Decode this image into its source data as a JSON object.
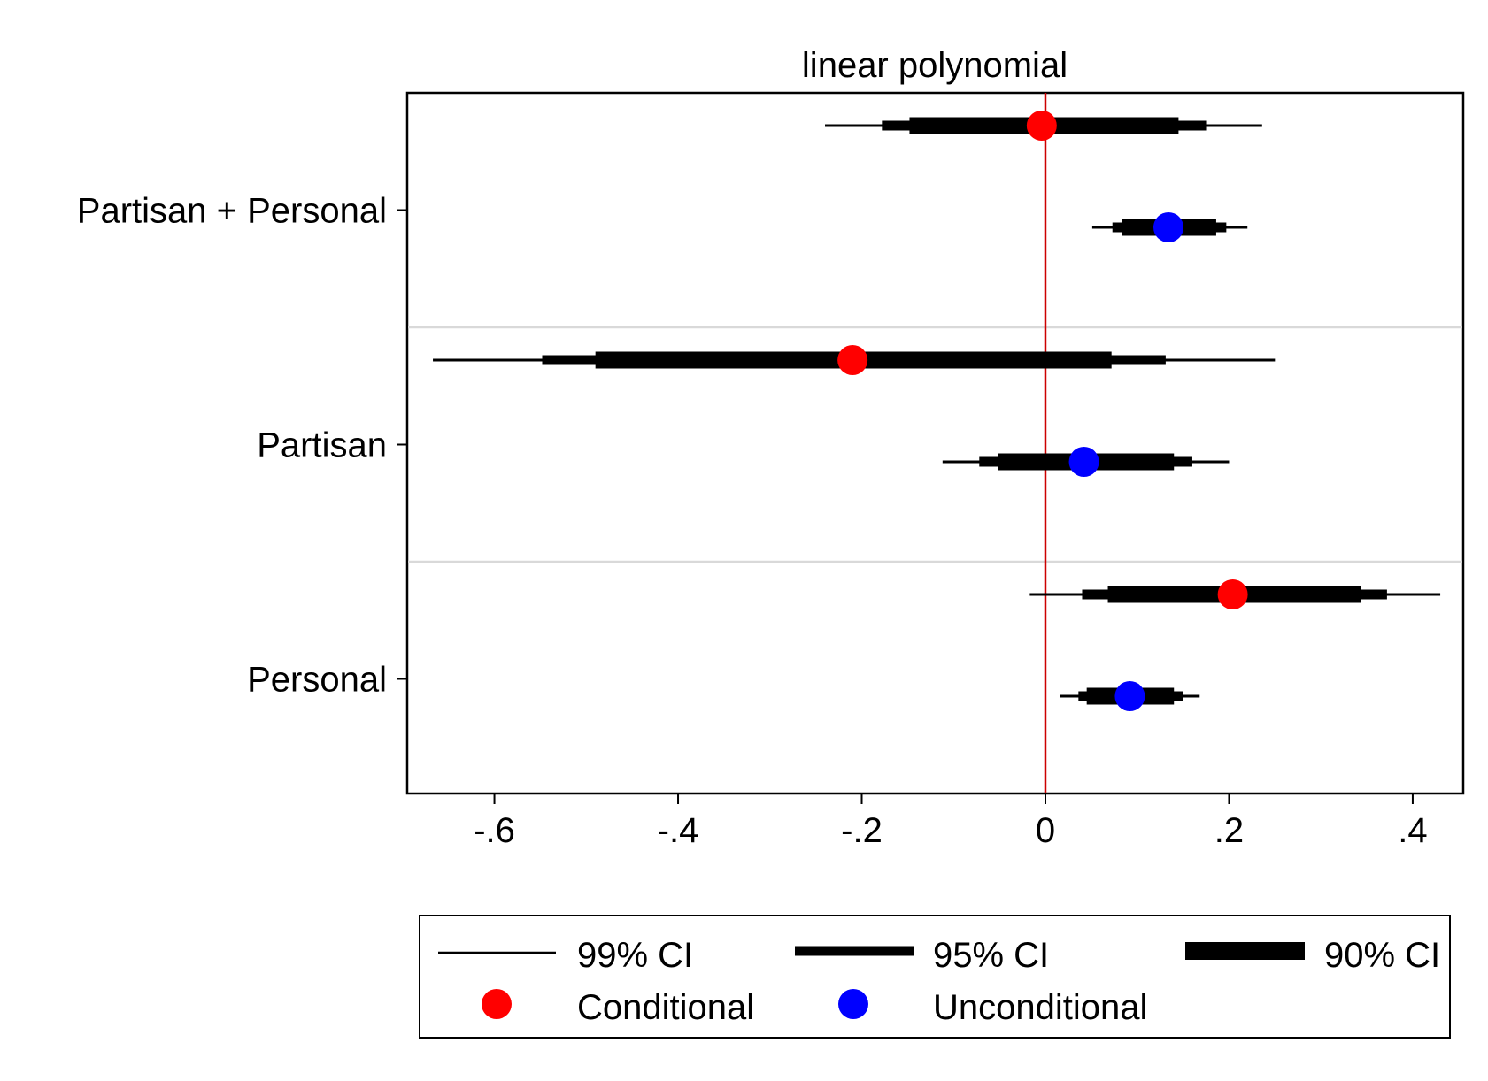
{
  "chart_data": {
    "type": "coefficient-plot",
    "title": "linear polynomial",
    "xlabel": "",
    "ylabel": "",
    "xlim": [
      -0.695,
      0.455
    ],
    "xticks": [
      -0.6,
      -0.4,
      -0.2,
      0,
      0.2,
      0.4
    ],
    "xtick_labels": [
      "-.6",
      "-.4",
      "-.2",
      "0",
      ".2",
      ".4"
    ],
    "reference_line": {
      "x": 0,
      "color": "#cc0000"
    },
    "grid": false,
    "group_separators": true,
    "groups": [
      {
        "label": "Partisan + Personal",
        "estimates": [
          {
            "series": "Conditional",
            "value": -0.004,
            "ci90": [
              -0.148,
              0.145
            ],
            "ci95": [
              -0.178,
              0.175
            ],
            "ci99": [
              -0.24,
              0.236
            ]
          },
          {
            "series": "Unconditional",
            "value": 0.134,
            "ci90": [
              0.083,
              0.186
            ],
            "ci95": [
              0.073,
              0.197
            ],
            "ci99": [
              0.051,
              0.22
            ]
          }
        ]
      },
      {
        "label": "Partisan",
        "estimates": [
          {
            "series": "Conditional",
            "value": -0.21,
            "ci90": [
              -0.49,
              0.072
            ],
            "ci95": [
              -0.548,
              0.131
            ],
            "ci99": [
              -0.667,
              0.25
            ]
          },
          {
            "series": "Unconditional",
            "value": 0.042,
            "ci90": [
              -0.052,
              0.14
            ],
            "ci95": [
              -0.072,
              0.16
            ],
            "ci99": [
              -0.112,
              0.2
            ]
          }
        ]
      },
      {
        "label": "Personal",
        "estimates": [
          {
            "series": "Conditional",
            "value": 0.204,
            "ci90": [
              0.068,
              0.344
            ],
            "ci95": [
              0.04,
              0.372
            ],
            "ci99": [
              -0.017,
              0.43
            ]
          },
          {
            "series": "Unconditional",
            "value": 0.092,
            "ci90": [
              0.045,
              0.14
            ],
            "ci95": [
              0.036,
              0.15
            ],
            "ci99": [
              0.016,
              0.168
            ]
          }
        ]
      }
    ],
    "series": [
      {
        "name": "Conditional",
        "color": "#ff0000"
      },
      {
        "name": "Unconditional",
        "color": "#0000ff"
      }
    ],
    "legend": {
      "placement": "bottom",
      "items": [
        {
          "kind": "line",
          "weight": "thin",
          "label": "99% CI"
        },
        {
          "kind": "line",
          "weight": "medium",
          "label": "95% CI"
        },
        {
          "kind": "line",
          "weight": "thick",
          "label": "90% CI"
        },
        {
          "kind": "marker",
          "color": "#ff0000",
          "label": "Conditional"
        },
        {
          "kind": "marker",
          "color": "#0000ff",
          "label": "Unconditional"
        }
      ]
    }
  }
}
